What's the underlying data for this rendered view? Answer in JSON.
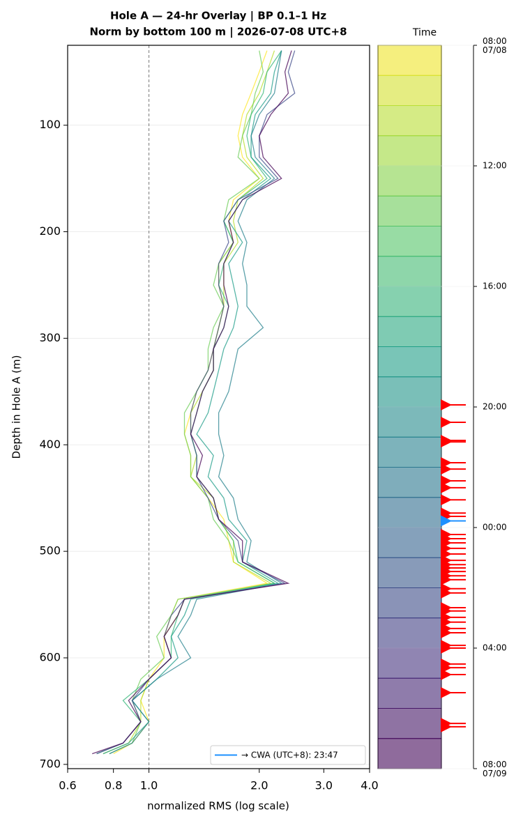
{
  "chart_data": {
    "type": "line",
    "title": "Hole A — 24-hr Overlay  |  BP 0.1–1 Hz",
    "subtitle": "Norm by bottom 100 m  |  2026-07-08 UTC+8",
    "x_label": "normalized RMS  (log scale)",
    "y_label": "Depth in Hole A (m)",
    "x_scale": "log",
    "xlim": [
      0.6,
      4.0
    ],
    "xticks": [
      0.6,
      0.8,
      {
        "value": 1,
        "label": "1.0"
      },
      {
        "value": 2,
        "label": "2.0"
      },
      {
        "value": 3,
        "label": "3.0"
      },
      {
        "value": 4,
        "label": "4.0"
      }
    ],
    "ylim": [
      25,
      704
    ],
    "y_inverted": true,
    "yticks": [
      100,
      200,
      300,
      400,
      500,
      600,
      700
    ],
    "grid": true,
    "reference_x": 1,
    "depth": [
      30,
      50,
      70,
      90,
      110,
      130,
      150,
      170,
      190,
      210,
      230,
      250,
      270,
      290,
      310,
      330,
      350,
      370,
      390,
      410,
      430,
      450,
      470,
      490,
      510,
      530,
      545,
      560,
      580,
      600,
      620,
      640,
      660,
      680,
      690
    ],
    "series": [
      {
        "color": "#fde725",
        "values": [
          2.1,
          2.0,
          1.9,
          1.8,
          1.75,
          1.8,
          2.0,
          1.7,
          1.65,
          1.7,
          1.55,
          1.55,
          1.6,
          1.55,
          1.5,
          1.45,
          1.35,
          1.3,
          1.25,
          1.3,
          1.3,
          1.45,
          1.6,
          1.65,
          1.7,
          2.1,
          1.2,
          1.15,
          1.1,
          1.1,
          1.0,
          0.95,
          1.0,
          0.9,
          0.8
        ]
      },
      {
        "color": "#b5de2b",
        "values": [
          2.2,
          2.1,
          2.0,
          1.85,
          1.8,
          1.85,
          2.05,
          1.75,
          1.7,
          1.75,
          1.6,
          1.6,
          1.6,
          1.55,
          1.5,
          1.5,
          1.4,
          1.3,
          1.3,
          1.35,
          1.3,
          1.5,
          1.55,
          1.7,
          1.7,
          2.15,
          1.25,
          1.2,
          1.1,
          1.15,
          1.0,
          0.95,
          0.95,
          0.88,
          0.75
        ]
      },
      {
        "color": "#6ece58",
        "values": [
          2.0,
          2.05,
          1.95,
          1.9,
          1.8,
          1.75,
          2.0,
          1.65,
          1.6,
          1.7,
          1.55,
          1.5,
          1.6,
          1.5,
          1.45,
          1.45,
          1.35,
          1.25,
          1.25,
          1.3,
          1.3,
          1.45,
          1.5,
          1.65,
          1.75,
          2.2,
          1.2,
          1.15,
          1.05,
          1.1,
          0.95,
          0.9,
          0.95,
          0.9,
          0.78
        ]
      },
      {
        "color": "#35b779",
        "values": [
          2.3,
          2.1,
          2.05,
          1.9,
          1.85,
          1.9,
          2.1,
          1.75,
          1.6,
          1.7,
          1.6,
          1.55,
          1.65,
          1.6,
          1.5,
          1.5,
          1.4,
          1.35,
          1.3,
          1.35,
          1.35,
          1.5,
          1.55,
          1.7,
          1.75,
          2.2,
          1.25,
          1.2,
          1.15,
          1.15,
          1.0,
          0.85,
          0.95,
          0.85,
          0.72
        ]
      },
      {
        "color": "#1f9e89",
        "values": [
          2.3,
          2.2,
          2.15,
          1.95,
          1.9,
          1.9,
          2.15,
          1.8,
          1.65,
          1.8,
          1.65,
          1.7,
          1.75,
          1.7,
          1.6,
          1.55,
          1.5,
          1.45,
          1.35,
          1.5,
          1.45,
          1.6,
          1.65,
          1.85,
          1.8,
          2.25,
          1.3,
          1.25,
          1.15,
          1.2,
          1.05,
          0.9,
          1.0,
          0.88,
          0.75
        ]
      },
      {
        "color": "#26828e",
        "values": [
          2.3,
          2.25,
          2.2,
          2.0,
          1.9,
          1.95,
          2.2,
          1.85,
          1.75,
          1.85,
          1.8,
          1.85,
          1.85,
          2.05,
          1.75,
          1.7,
          1.65,
          1.55,
          1.55,
          1.6,
          1.55,
          1.7,
          1.75,
          1.9,
          1.85,
          2.3,
          1.35,
          1.3,
          1.2,
          1.3,
          1.05,
          0.9,
          1.0,
          0.9,
          0.78
        ]
      },
      {
        "color": "#3e4989",
        "values": [
          2.5,
          2.4,
          2.5,
          2.1,
          2.0,
          2.0,
          2.25,
          1.75,
          1.6,
          1.65,
          1.55,
          1.55,
          1.6,
          1.55,
          1.5,
          1.45,
          1.35,
          1.3,
          1.3,
          1.35,
          1.35,
          1.45,
          1.55,
          1.75,
          1.8,
          2.35,
          1.25,
          1.15,
          1.1,
          1.15,
          1.0,
          0.9,
          0.95,
          0.85,
          0.72
        ]
      },
      {
        "color": "#440154",
        "values": [
          2.45,
          2.35,
          2.4,
          2.15,
          2.0,
          2.05,
          2.3,
          1.8,
          1.65,
          1.7,
          1.6,
          1.6,
          1.65,
          1.6,
          1.5,
          1.5,
          1.4,
          1.35,
          1.3,
          1.4,
          1.35,
          1.5,
          1.55,
          1.8,
          1.8,
          2.4,
          1.25,
          1.2,
          1.1,
          1.15,
          1.0,
          0.88,
          0.95,
          0.85,
          0.7
        ]
      }
    ],
    "colorbar_title": "Time",
    "clim": [
      0,
      24
    ],
    "colorbar_step": 1,
    "colormap": [
      "#fde725",
      "#a0da39",
      "#4ac16d",
      "#1fa187",
      "#277f8e",
      "#365c8d",
      "#46327e",
      "#440154"
    ],
    "cticks": [
      {
        "value": 0,
        "label": "08:00\n07/08"
      },
      {
        "value": 4,
        "label": "12:00"
      },
      {
        "value": 8,
        "label": "16:00"
      },
      {
        "value": 12,
        "label": "20:00"
      },
      {
        "value": 16,
        "label": "00:00"
      },
      {
        "value": 20,
        "label": "04:00"
      },
      {
        "value": 24,
        "label": "08:00\n07/09"
      }
    ],
    "event_color": "#ff0000",
    "events": [
      11.93,
      12.51,
      13.11,
      13.16,
      13.85,
      14.06,
      14.45,
      14.68,
      15.08,
      15.52,
      15.63,
      16.23,
      16.37,
      16.51,
      16.69,
      16.88,
      17.09,
      17.23,
      17.34,
      17.46,
      17.6,
      17.73,
      18.03,
      18.17,
      18.66,
      18.77,
      18.98,
      19.14,
      19.35,
      19.49,
      19.91,
      20.0,
      20.53,
      20.65,
      20.88,
      21.48,
      22.5,
      22.61
    ],
    "cwa_event": {
      "value": 15.78,
      "label": "→ CWA (UTC+8): 23:47",
      "color": "#1e90ff"
    },
    "legend": "lower right"
  }
}
